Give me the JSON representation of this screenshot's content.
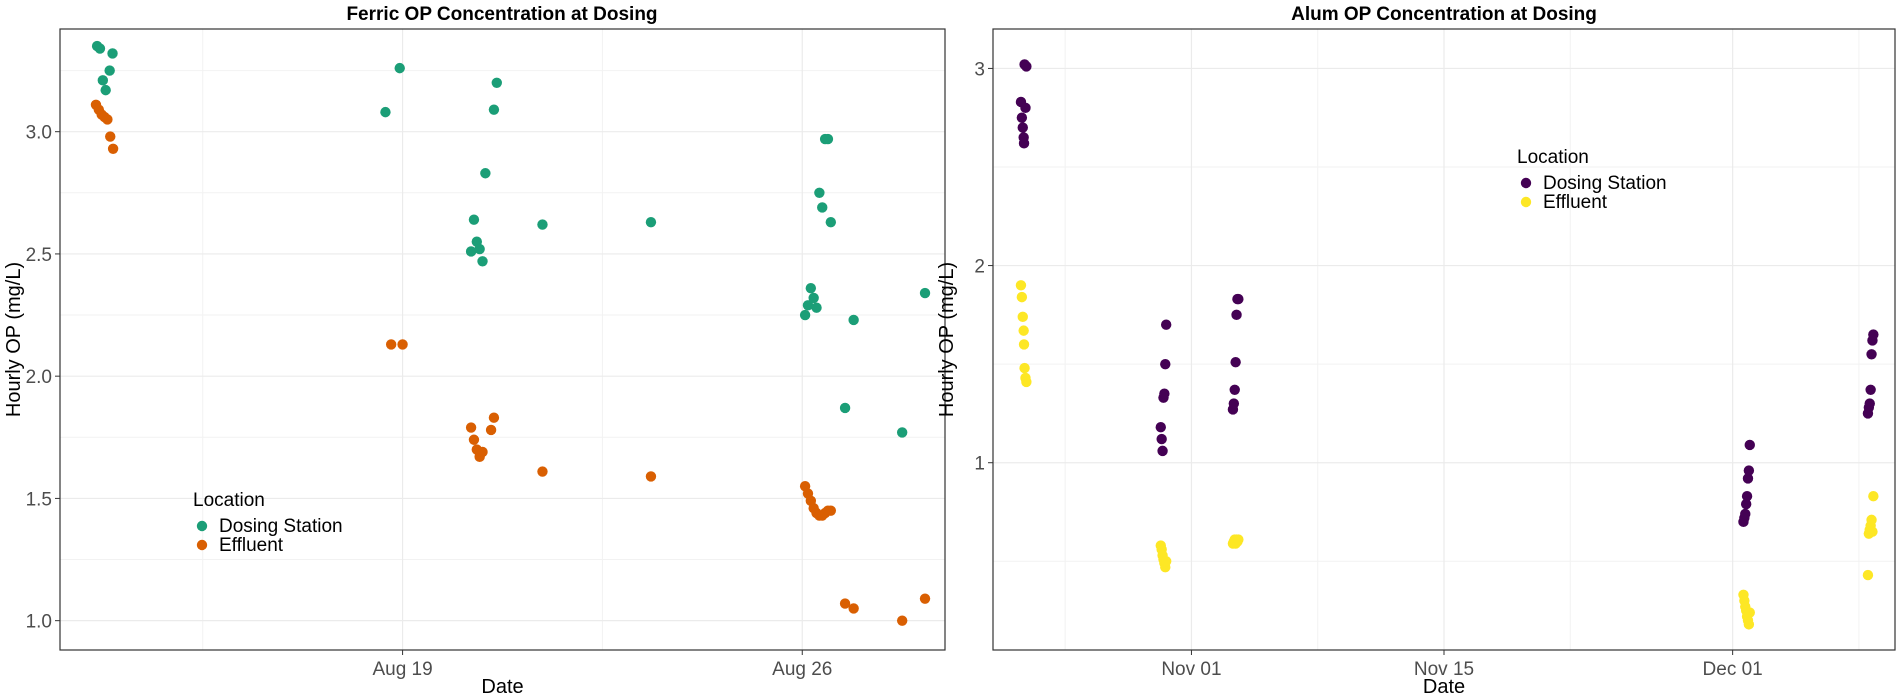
{
  "chart_data": [
    {
      "type": "scatter",
      "title": "Ferric OP Concentration at Dosing",
      "xlabel": "Date",
      "ylabel": "Hourly OP (mg/L)",
      "x_ticks": [
        "Aug 19",
        "Aug 26"
      ],
      "y_ticks": [
        "1.0",
        "1.5",
        "2.0",
        "2.5",
        "3.0"
      ],
      "xlim": [
        "2024-08-13",
        "2024-08-28.5"
      ],
      "ylim": [
        0.88,
        3.42
      ],
      "grid": true,
      "legend": {
        "title": "Location",
        "position": "bottom-left"
      },
      "series": [
        {
          "name": "Dosing Station",
          "color": "#1b9e77",
          "points": [
            [
              "2024-08-13.65",
              3.35
            ],
            [
              "2024-08-13.7",
              3.34
            ],
            [
              "2024-08-13.75",
              3.21
            ],
            [
              "2024-08-13.8",
              3.17
            ],
            [
              "2024-08-13.87",
              3.25
            ],
            [
              "2024-08-13.92",
              3.32
            ],
            [
              "2024-08-18.7",
              3.08
            ],
            [
              "2024-08-18.95",
              3.26
            ],
            [
              "2024-08-20.2",
              2.51
            ],
            [
              "2024-08-20.25",
              2.64
            ],
            [
              "2024-08-20.3",
              2.55
            ],
            [
              "2024-08-20.35",
              2.52
            ],
            [
              "2024-08-20.4",
              2.47
            ],
            [
              "2024-08-20.45",
              2.83
            ],
            [
              "2024-08-20.6",
              3.09
            ],
            [
              "2024-08-20.65",
              3.2
            ],
            [
              "2024-08-21.45",
              2.62
            ],
            [
              "2024-08-23.35",
              2.63
            ],
            [
              "2024-08-26.05",
              2.25
            ],
            [
              "2024-08-26.1",
              2.29
            ],
            [
              "2024-08-26.15",
              2.36
            ],
            [
              "2024-08-26.2",
              2.32
            ],
            [
              "2024-08-26.25",
              2.28
            ],
            [
              "2024-08-26.3",
              2.75
            ],
            [
              "2024-08-26.35",
              2.69
            ],
            [
              "2024-08-26.4",
              2.97
            ],
            [
              "2024-08-26.45",
              2.97
            ],
            [
              "2024-08-26.5",
              2.63
            ],
            [
              "2024-08-26.75",
              1.87
            ],
            [
              "2024-08-26.9",
              2.23
            ],
            [
              "2024-08-27.75",
              1.77
            ],
            [
              "2024-08-28.15",
              2.34
            ]
          ]
        },
        {
          "name": "Effluent",
          "color": "#d95f02",
          "points": [
            [
              "2024-08-13.63",
              3.11
            ],
            [
              "2024-08-13.68",
              3.09
            ],
            [
              "2024-08-13.73",
              3.07
            ],
            [
              "2024-08-13.78",
              3.06
            ],
            [
              "2024-08-13.83",
              3.05
            ],
            [
              "2024-08-13.88",
              2.98
            ],
            [
              "2024-08-13.93",
              2.93
            ],
            [
              "2024-08-18.8",
              2.13
            ],
            [
              "2024-08-19.0",
              2.13
            ],
            [
              "2024-08-20.2",
              1.79
            ],
            [
              "2024-08-20.25",
              1.74
            ],
            [
              "2024-08-20.3",
              1.7
            ],
            [
              "2024-08-20.35",
              1.67
            ],
            [
              "2024-08-20.4",
              1.69
            ],
            [
              "2024-08-20.55",
              1.78
            ],
            [
              "2024-08-20.6",
              1.83
            ],
            [
              "2024-08-21.45",
              1.61
            ],
            [
              "2024-08-23.35",
              1.59
            ],
            [
              "2024-08-26.05",
              1.55
            ],
            [
              "2024-08-26.1",
              1.52
            ],
            [
              "2024-08-26.15",
              1.49
            ],
            [
              "2024-08-26.2",
              1.46
            ],
            [
              "2024-08-26.25",
              1.44
            ],
            [
              "2024-08-26.3",
              1.43
            ],
            [
              "2024-08-26.35",
              1.43
            ],
            [
              "2024-08-26.4",
              1.44
            ],
            [
              "2024-08-26.45",
              1.45
            ],
            [
              "2024-08-26.5",
              1.45
            ],
            [
              "2024-08-26.75",
              1.07
            ],
            [
              "2024-08-26.9",
              1.05
            ],
            [
              "2024-08-27.75",
              1.0
            ],
            [
              "2024-08-28.15",
              1.09
            ]
          ]
        }
      ]
    },
    {
      "type": "scatter",
      "title": "Alum OP Concentration at Dosing",
      "xlabel": "Date",
      "ylabel": "Hourly OP (mg/L)",
      "x_ticks": [
        "Nov 01",
        "Nov 15",
        "Dec 01"
      ],
      "y_ticks": [
        "1",
        "2",
        "3"
      ],
      "xlim": [
        "2024-10-21",
        "2024-12-10"
      ],
      "ylim": [
        0.05,
        3.2
      ],
      "grid": true,
      "legend": {
        "title": "Location",
        "position": "top-center-right"
      },
      "series": [
        {
          "name": "Dosing Station",
          "color": "#440154",
          "points": [
            [
              "2024-10-22.55",
              2.83
            ],
            [
              "2024-10-22.6",
              2.75
            ],
            [
              "2024-10-22.65",
              2.7
            ],
            [
              "2024-10-22.7",
              2.65
            ],
            [
              "2024-10-22.72",
              2.62
            ],
            [
              "2024-10-22.75",
              3.02
            ],
            [
              "2024-10-22.8",
              2.8
            ],
            [
              "2024-10-22.85",
              3.01
            ],
            [
              "2024-10-30.3",
              1.18
            ],
            [
              "2024-10-30.35",
              1.12
            ],
            [
              "2024-10-30.4",
              1.06
            ],
            [
              "2024-10-30.45",
              1.33
            ],
            [
              "2024-10-30.5",
              1.35
            ],
            [
              "2024-10-30.55",
              1.5
            ],
            [
              "2024-10-30.6",
              1.7
            ],
            [
              "2024-11-03.3",
              1.27
            ],
            [
              "2024-11-03.35",
              1.3
            ],
            [
              "2024-11-03.4",
              1.37
            ],
            [
              "2024-11-03.45",
              1.51
            ],
            [
              "2024-11-03.5",
              1.75
            ],
            [
              "2024-11-03.55",
              1.83
            ],
            [
              "2024-11-03.6",
              1.83
            ],
            [
              "2024-12-01.6",
              0.7
            ],
            [
              "2024-12-01.65",
              0.72
            ],
            [
              "2024-12-01.7",
              0.74
            ],
            [
              "2024-12-01.75",
              0.79
            ],
            [
              "2024-12-01.8",
              0.83
            ],
            [
              "2024-12-01.85",
              0.92
            ],
            [
              "2024-12-01.9",
              0.96
            ],
            [
              "2024-12-01.95",
              1.09
            ],
            [
              "2024-12-08.5",
              1.25
            ],
            [
              "2024-12-08.55",
              1.28
            ],
            [
              "2024-12-08.6",
              1.3
            ],
            [
              "2024-12-08.65",
              1.37
            ],
            [
              "2024-12-08.7",
              1.55
            ],
            [
              "2024-12-08.75",
              1.62
            ],
            [
              "2024-12-08.8",
              1.65
            ]
          ]
        },
        {
          "name": "Effluent",
          "color": "#fde725",
          "points": [
            [
              "2024-10-22.55",
              1.9
            ],
            [
              "2024-10-22.6",
              1.84
            ],
            [
              "2024-10-22.65",
              1.74
            ],
            [
              "2024-10-22.7",
              1.67
            ],
            [
              "2024-10-22.72",
              1.6
            ],
            [
              "2024-10-22.75",
              1.48
            ],
            [
              "2024-10-22.8",
              1.43
            ],
            [
              "2024-10-22.85",
              1.41
            ],
            [
              "2024-10-30.3",
              0.58
            ],
            [
              "2024-10-30.35",
              0.56
            ],
            [
              "2024-10-30.4",
              0.53
            ],
            [
              "2024-10-30.45",
              0.51
            ],
            [
              "2024-10-30.5",
              0.49
            ],
            [
              "2024-10-30.55",
              0.47
            ],
            [
              "2024-10-30.6",
              0.5
            ],
            [
              "2024-11-03.3",
              0.59
            ],
            [
              "2024-11-03.35",
              0.6
            ],
            [
              "2024-11-03.4",
              0.61
            ],
            [
              "2024-11-03.45",
              0.59
            ],
            [
              "2024-11-03.5",
              0.61
            ],
            [
              "2024-11-03.55",
              0.6
            ],
            [
              "2024-11-03.6",
              0.61
            ],
            [
              "2024-12-01.6",
              0.33
            ],
            [
              "2024-12-01.65",
              0.3
            ],
            [
              "2024-12-01.7",
              0.27
            ],
            [
              "2024-12-01.75",
              0.25
            ],
            [
              "2024-12-01.8",
              0.22
            ],
            [
              "2024-12-01.85",
              0.2
            ],
            [
              "2024-12-01.9",
              0.18
            ],
            [
              "2024-12-01.95",
              0.24
            ],
            [
              "2024-12-08.5",
              0.43
            ],
            [
              "2024-12-08.55",
              0.64
            ],
            [
              "2024-12-08.6",
              0.66
            ],
            [
              "2024-12-08.65",
              0.68
            ],
            [
              "2024-12-08.7",
              0.71
            ],
            [
              "2024-12-08.75",
              0.65
            ],
            [
              "2024-12-08.8",
              0.83
            ]
          ]
        }
      ]
    }
  ]
}
